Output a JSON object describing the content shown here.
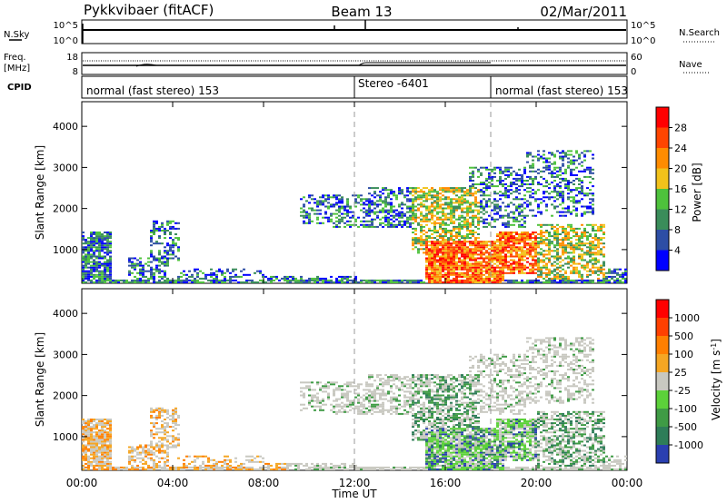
{
  "header": {
    "station": "Pykkvibaer (fitACF)",
    "beam": "Beam 13",
    "date": "02/Mar/2011"
  },
  "sky_panel": {
    "left_label": "N.Sky",
    "left_ticks": [
      "10^5",
      "10^0"
    ],
    "right_ticks": [
      "10^5",
      "10^0"
    ],
    "right_label": "N.Search"
  },
  "freq_panel": {
    "left_label_1": "Freq.",
    "left_label_2": "[MHz]",
    "left_ticks": [
      "18",
      "8"
    ],
    "right_ticks": [
      "60",
      "0"
    ],
    "right_label": "Nave"
  },
  "cpid_panel": {
    "label": "CPID",
    "segments": [
      {
        "text": "normal (fast stereo) 153",
        "start_hour": 0
      },
      {
        "text": "Stereo -6401",
        "start_hour": 12
      },
      {
        "text": "normal (fast stereo) 153",
        "start_hour": 18
      }
    ]
  },
  "chart_data": [
    {
      "type": "heatmap",
      "title": "",
      "xlabel": "Time UT",
      "ylabel": "Slant Range [km]",
      "xlim": [
        0,
        24
      ],
      "ylim": [
        180,
        4600
      ],
      "x_ticks": [
        "00:00",
        "04:00",
        "08:00",
        "12:00",
        "16:00",
        "20:00",
        "00:00"
      ],
      "y_ticks": [
        "1000",
        "2000",
        "3000",
        "4000"
      ],
      "colorbar_label": "Power [dB]",
      "colorbar_ticks": [
        "28",
        "24",
        "20",
        "16",
        "12",
        "8",
        "4"
      ],
      "colors": [
        "#0000ff",
        "#2d4ea5",
        "#3a8d5a",
        "#4ec23c",
        "#f2c21b",
        "#ff8c00",
        "#ff4500",
        "#ff0000"
      ],
      "mode": "power"
    },
    {
      "type": "heatmap",
      "title": "",
      "xlabel": "Time UT",
      "ylabel": "Slant Range [km]",
      "xlim": [
        0,
        24
      ],
      "ylim": [
        180,
        4600
      ],
      "x_ticks": [
        "00:00",
        "04:00",
        "08:00",
        "12:00",
        "16:00",
        "20:00",
        "00:00"
      ],
      "y_ticks": [
        "1000",
        "2000",
        "3000",
        "4000"
      ],
      "colorbar_label": "Velocity [m s",
      "colorbar_label_sup": "-1",
      "colorbar_label_end": "]",
      "colorbar_ticks": [
        "1000",
        "500",
        "100",
        "25",
        "-25",
        "-100",
        "-500",
        "-1000"
      ],
      "colors": [
        "#2a3fb0",
        "#2e7d58",
        "#3f9b45",
        "#5cd13a",
        "#c8c8c0",
        "#f5a623",
        "#ff7f00",
        "#ff4000",
        "#ff0000"
      ],
      "mode": "velocity"
    }
  ]
}
